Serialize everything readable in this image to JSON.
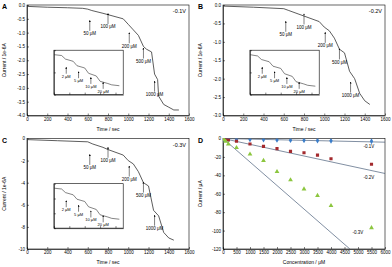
{
  "chart_data": [
    {
      "type": "line",
      "title": "A",
      "subtitle": "-0.1V",
      "xlabel": "Time / sec",
      "ylabel": "Current / 1e-6A",
      "xlim": [
        0,
        1600
      ],
      "xticks": [
        0,
        200,
        400,
        600,
        800,
        1000,
        1200,
        1400,
        1600
      ],
      "ylim": [
        -4,
        0
      ],
      "yticks": [
        {
          "value": 0,
          "label": "0.0"
        },
        -0.5,
        {
          "value": -1,
          "label": "-1.0"
        },
        -1.5,
        {
          "value": -2,
          "label": "-2.0"
        },
        -2.5,
        {
          "value": -3,
          "label": "-3.0"
        },
        -3.5,
        {
          "value": -4,
          "label": "-4.0"
        }
      ],
      "series": [
        {
          "color": "#333333",
          "x": [
            0,
            200,
            400,
            550,
            600,
            640,
            750,
            800,
            950,
            1000,
            1050,
            1100,
            1150,
            1180,
            1230,
            1260,
            1290,
            1300,
            1350,
            1400,
            1450,
            1500
          ],
          "values": [
            -0.05,
            -0.08,
            -0.1,
            -0.12,
            -0.15,
            -0.2,
            -0.3,
            -0.35,
            -0.5,
            -0.7,
            -0.9,
            -1.1,
            -1.5,
            -1.6,
            -1.7,
            -2.5,
            -2.7,
            -3.3,
            -3.6,
            -3.7,
            -3.8,
            -3.8
          ]
        }
      ],
      "annotations": [
        {
          "text": "50 μM",
          "x": 620,
          "y": -1.1
        },
        {
          "text": "100 μM",
          "x": 800,
          "y": -0.85
        },
        {
          "text": "200 μM",
          "x": 1010,
          "y": -1.55
        },
        {
          "text": "500 μM",
          "x": 1150,
          "y": -2.1
        },
        {
          "text": "1000 μM",
          "x": 1260,
          "y": -3.3
        }
      ],
      "inset": {
        "type": "line",
        "xlim": [
          0,
          900
        ],
        "xticks": [
          0,
          200,
          400,
          600,
          800
        ],
        "ylim": [
          -0.1,
          0
        ],
        "yticks": [
          0,
          -0.05,
          -0.1
        ],
        "tick_labels": false,
        "series": [
          {
            "color": "#333333",
            "x": [
              0,
              100,
              150,
              250,
              300,
              400,
              450,
              550,
              600,
              700,
              750,
              850
            ],
            "values": [
              -0.01,
              -0.012,
              -0.02,
              -0.025,
              -0.035,
              -0.04,
              -0.052,
              -0.058,
              -0.07,
              -0.075,
              -0.078,
              -0.08
            ]
          }
        ],
        "annotations": [
          {
            "text": "2 μM",
            "x": 160,
            "y": -0.062
          },
          {
            "text": "5 μM",
            "x": 320,
            "y": -0.072
          },
          {
            "text": "10 μM",
            "x": 480,
            "y": -0.085
          },
          {
            "text": "20 μM",
            "x": 640,
            "y": -0.096
          }
        ]
      }
    },
    {
      "type": "line",
      "title": "B",
      "subtitle": "-0.2V",
      "xlabel": "Time / sec",
      "ylabel": "Current / 1e-6A",
      "xlim": [
        0,
        1600
      ],
      "xticks": [
        0,
        200,
        400,
        600,
        800,
        1000,
        1200,
        1400,
        1600
      ],
      "ylim": [
        -3,
        0
      ],
      "yticks": [
        {
          "value": 0,
          "label": "0.0"
        },
        -0.5,
        {
          "value": -1,
          "label": "-1.0"
        },
        -1.5,
        {
          "value": -2,
          "label": "-2.0"
        },
        -2.5,
        {
          "value": -3,
          "label": "-3.0"
        }
      ],
      "series": [
        {
          "color": "#333333",
          "x": [
            0,
            300,
            600,
            650,
            750,
            800,
            950,
            1000,
            1050,
            1100,
            1150,
            1200,
            1250,
            1300,
            1350,
            1400,
            1450
          ],
          "values": [
            -0.03,
            -0.06,
            -0.1,
            -0.15,
            -0.25,
            -0.3,
            -0.45,
            -0.6,
            -0.7,
            -0.9,
            -1.2,
            -1.3,
            -1.8,
            -2.0,
            -2.4,
            -2.6,
            -2.7
          ]
        }
      ],
      "annotations": [
        {
          "text": "50 μM",
          "x": 620,
          "y": -0.85
        },
        {
          "text": "100 μM",
          "x": 800,
          "y": -0.65
        },
        {
          "text": "200 μM",
          "x": 1010,
          "y": -1.15
        },
        {
          "text": "500 μM",
          "x": 1150,
          "y": -1.6
        },
        {
          "text": "1000 μM",
          "x": 1260,
          "y": -2.5
        }
      ],
      "inset": {
        "type": "line",
        "xlim": [
          0,
          900
        ],
        "xticks": [
          0,
          200,
          400,
          600,
          800
        ],
        "ylim": [
          -0.1,
          0
        ],
        "yticks": [
          0,
          -0.05,
          -0.1
        ],
        "tick_labels": false,
        "series": [
          {
            "color": "#333333",
            "x": [
              0,
              100,
              150,
              250,
              300,
              400,
              450,
              550,
              600,
              700,
              750,
              850
            ],
            "values": [
              -0.01,
              -0.013,
              -0.021,
              -0.026,
              -0.036,
              -0.041,
              -0.053,
              -0.059,
              -0.071,
              -0.076,
              -0.079,
              -0.081
            ]
          }
        ],
        "annotations": [
          {
            "text": "2 μM",
            "x": 160,
            "y": -0.062
          },
          {
            "text": "5 μM",
            "x": 320,
            "y": -0.072
          },
          {
            "text": "10 μM",
            "x": 480,
            "y": -0.085
          },
          {
            "text": "20 μM",
            "x": 640,
            "y": -0.096
          }
        ]
      }
    },
    {
      "type": "line",
      "title": "C",
      "subtitle": "-0.3V",
      "xlabel": "Time / sec",
      "ylabel": "Current / 1e-6A",
      "xlim": [
        0,
        1600
      ],
      "xticks": [
        0,
        200,
        400,
        600,
        800,
        1000,
        1200,
        1400,
        1600
      ],
      "ylim": [
        -10,
        0
      ],
      "yticks": [
        0,
        -2,
        -4,
        -6,
        -8,
        -10
      ],
      "series": [
        {
          "color": "#333333",
          "x": [
            0,
            300,
            600,
            650,
            750,
            800,
            950,
            1000,
            1050,
            1100,
            1150,
            1200,
            1250,
            1300,
            1350,
            1400,
            1450
          ],
          "values": [
            -0.1,
            -0.2,
            -0.3,
            -0.5,
            -0.8,
            -1.0,
            -1.5,
            -2.0,
            -2.3,
            -3.0,
            -4.0,
            -4.3,
            -6.5,
            -7.0,
            -8.5,
            -9.0,
            -9.2
          ]
        }
      ],
      "annotations": [
        {
          "text": "50 μM",
          "x": 620,
          "y": -2.8
        },
        {
          "text": "100 μM",
          "x": 800,
          "y": -2.15
        },
        {
          "text": "200 μM",
          "x": 1010,
          "y": -3.85
        },
        {
          "text": "500 μM",
          "x": 1150,
          "y": -5.3
        },
        {
          "text": "1000 μM",
          "x": 1260,
          "y": -8.3
        }
      ],
      "inset": {
        "type": "line",
        "xlim": [
          0,
          900
        ],
        "xticks": [
          0,
          200,
          400,
          600,
          800
        ],
        "ylim": [
          -0.3,
          0
        ],
        "yticks": [
          0,
          -0.1,
          -0.2,
          -0.3
        ],
        "tick_labels": false,
        "series": [
          {
            "color": "#333333",
            "x": [
              0,
              100,
              150,
              250,
              300,
              400,
              450,
              550,
              600,
              700,
              750,
              850
            ],
            "values": [
              -0.03,
              -0.036,
              -0.06,
              -0.075,
              -0.105,
              -0.12,
              -0.156,
              -0.174,
              -0.21,
              -0.225,
              -0.234,
              -0.24
            ]
          }
        ],
        "annotations": [
          {
            "text": "2 μM",
            "x": 160,
            "y": -0.186
          },
          {
            "text": "5 μM",
            "x": 320,
            "y": -0.216
          },
          {
            "text": "10 μM",
            "x": 480,
            "y": -0.255
          },
          {
            "text": "20 μM",
            "x": 640,
            "y": -0.288
          }
        ]
      }
    },
    {
      "type": "scatter",
      "title": "D",
      "xlabel": "Concentration / μM",
      "ylabel": "Current / μA",
      "xlim": [
        0,
        6000
      ],
      "xticks": [
        0,
        500,
        1000,
        1500,
        2000,
        2500,
        3000,
        3500,
        4000,
        4500,
        5000,
        5500,
        6000
      ],
      "ylim": [
        -120,
        0
      ],
      "yticks": [
        0,
        -20,
        -40,
        -60,
        -80,
        -100,
        -120
      ],
      "series": [
        {
          "color": "#3a7dc9",
          "marker": "diamond",
          "x": [
            0,
            2,
            5,
            10,
            20,
            50,
            100,
            200,
            500,
            1000,
            1500,
            2000,
            2500,
            3000,
            3500,
            4000,
            5500
          ],
          "values": [
            0,
            0,
            0,
            0,
            -0.1,
            -0.2,
            -0.3,
            -0.5,
            -0.8,
            -1.0,
            -1.2,
            -1.5,
            -1.8,
            -2.0,
            -2.2,
            -2.5,
            -3.0
          ],
          "fit": {
            "x": [
              0,
              6000
            ],
            "values": [
              0,
              -4
            ]
          }
        },
        {
          "color": "#a32a2e",
          "marker": "square",
          "x": [
            0,
            2,
            5,
            10,
            20,
            50,
            100,
            200,
            500,
            1000,
            1500,
            2000,
            2500,
            3000,
            3500,
            4000,
            5500
          ],
          "values": [
            0,
            0,
            0,
            0,
            -0.2,
            -0.4,
            -0.8,
            -1.5,
            -3.0,
            -6.0,
            -8.5,
            -11,
            -14,
            -15.5,
            -18,
            -22,
            -28
          ],
          "fit": {
            "x": [
              0,
              6000
            ],
            "values": [
              0,
              -38
            ]
          }
        },
        {
          "color": "#8cc63f",
          "marker": "triangle",
          "x": [
            0,
            2,
            5,
            10,
            20,
            50,
            100,
            200,
            500,
            1000,
            1500,
            2000,
            2500,
            3000,
            3500,
            4000,
            5500
          ],
          "values": [
            0,
            0,
            -0.1,
            -0.2,
            -0.5,
            -1.5,
            -3,
            -6,
            -10,
            -17,
            -24,
            -36,
            -45,
            -55,
            -62,
            -73,
            -97
          ],
          "fit": {
            "x": [
              0,
              4700
            ],
            "values": [
              0,
              -120
            ]
          }
        }
      ],
      "annotations": [
        {
          "text": "-0.1V",
          "x": 5400,
          "y": -10
        },
        {
          "text": "-0.2V",
          "x": 5400,
          "y": -44
        },
        {
          "text": "-0.3V",
          "x": 5000,
          "y": -104
        }
      ]
    }
  ]
}
